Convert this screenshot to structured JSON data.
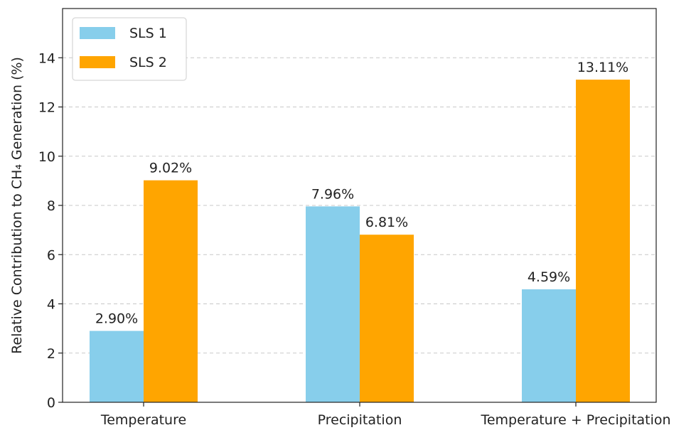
{
  "chart_data": {
    "type": "bar",
    "categories": [
      "Temperature",
      "Precipitation",
      "Temperature + Precipitation"
    ],
    "series": [
      {
        "name": "SLS 1",
        "values": [
          2.9,
          7.96,
          4.59
        ],
        "labels": [
          "2.90%",
          "7.96%",
          "4.59%"
        ],
        "color": "#87CEEB"
      },
      {
        "name": "SLS 2",
        "values": [
          9.02,
          6.81,
          13.11
        ],
        "labels": [
          "9.02%",
          "6.81%",
          "13.11%"
        ],
        "color": "#FFA500"
      }
    ],
    "ylabel": "Relative Contribution to CH₄ Generation (%)",
    "ylim": [
      0,
      16
    ],
    "yticks": [
      0,
      2,
      4,
      6,
      8,
      10,
      12,
      14
    ],
    "grid": "y-dashed",
    "legend_position": "top-left"
  }
}
